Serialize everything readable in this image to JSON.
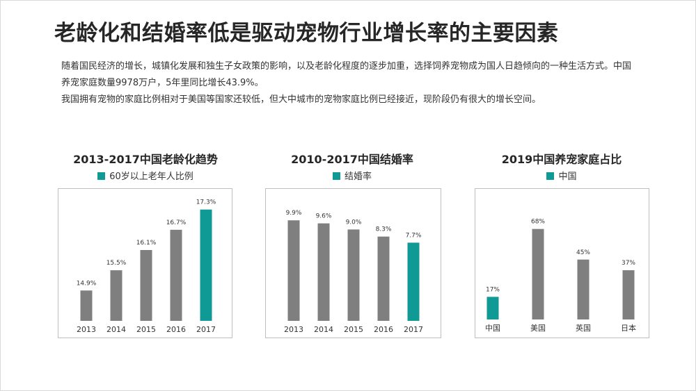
{
  "title": "老龄化和结婚率低是驱动宠物行业增长率的主要因素",
  "paragraphs": [
    "随着国民经济的增长，城镇化发展和独生子女政策的影响，以及老龄化程度的逐步加重，选择饲养宠物成为国人日趋倾向的一种生活方式。中国养宠家庭数量9978万户，5年里同比增长43.9%。",
    "我国拥有宠物的家庭比例相对于美国等国家还较低，但大中城市的宠物家庭比例已经接近，现阶段仍有很大的增长空间。"
  ],
  "colors": {
    "gray": "#7f7f7f",
    "teal": "#0f9a96"
  },
  "chart_data": [
    {
      "type": "bar",
      "title": "2013-2017中国老龄化趋势",
      "legend": "60岁以上老年人比例",
      "categories": [
        "2013",
        "2014",
        "2015",
        "2016",
        "2017"
      ],
      "values": [
        14.9,
        15.5,
        16.1,
        16.7,
        17.3
      ],
      "labels": [
        "14.9%",
        "15.5%",
        "16.1%",
        "16.7%",
        "17.3%"
      ],
      "ylim": [
        14.0,
        17.5
      ],
      "highlight_index": 4
    },
    {
      "type": "bar",
      "title": "2010-2017中国结婚率",
      "legend": "结婚率",
      "categories": [
        "2013",
        "2014",
        "2015",
        "2016",
        "2017"
      ],
      "values": [
        9.9,
        9.6,
        9.0,
        8.3,
        7.7
      ],
      "labels": [
        "9.9%",
        "9.6%",
        "9.0%",
        "8.3%",
        "7.7%"
      ],
      "ylim": [
        0,
        10.6
      ],
      "highlight_index": 4
    },
    {
      "type": "bar",
      "title": "2019中国养宠家庭占比",
      "legend": "中国",
      "categories": [
        "中国",
        "美国",
        "英国",
        "日本"
      ],
      "values": [
        17,
        68,
        45,
        37
      ],
      "labels": [
        "17%",
        "68%",
        "45%",
        "37%"
      ],
      "ylim": [
        0,
        72
      ],
      "highlight_index": 0
    }
  ]
}
